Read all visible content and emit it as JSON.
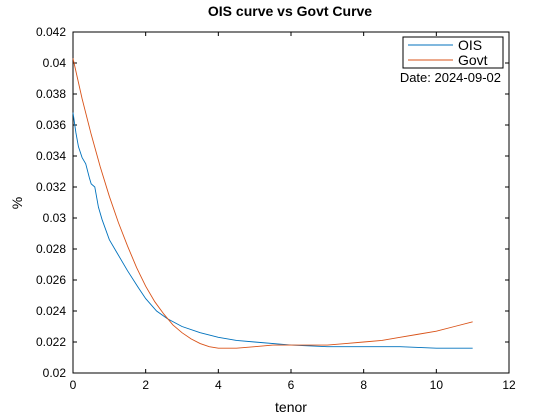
{
  "chart_data": {
    "type": "line",
    "title": "OIS curve vs Govt Curve",
    "xlabel": "tenor",
    "ylabel": "%",
    "xlim": [
      0,
      12
    ],
    "ylim": [
      0.02,
      0.042
    ],
    "x_ticks": [
      0,
      2,
      4,
      6,
      8,
      10,
      12
    ],
    "x_tick_labels": [
      "0",
      "2",
      "4",
      "6",
      "8",
      "10",
      "12"
    ],
    "y_ticks": [
      0.02,
      0.022,
      0.024,
      0.026,
      0.028,
      0.03,
      0.032,
      0.034,
      0.036,
      0.038,
      0.04,
      0.042
    ],
    "y_tick_labels": [
      "0.02",
      "0.022",
      "0.024",
      "0.026",
      "0.028",
      "0.03",
      "0.032",
      "0.034",
      "0.036",
      "0.038",
      "0.04",
      "0.042"
    ],
    "grid": false,
    "legend_position": "top-right",
    "annotation": "Date: 2024-09-02",
    "series": [
      {
        "name": "OIS",
        "color": "#0072BD",
        "x": [
          0,
          0.08,
          0.15,
          0.25,
          0.35,
          0.45,
          0.5,
          0.6,
          0.7,
          0.8,
          1.0,
          1.2,
          1.5,
          1.8,
          2.0,
          2.3,
          2.6,
          3.0,
          3.5,
          4.0,
          4.5,
          5.0,
          6.0,
          7.0,
          8.0,
          9.0,
          10.0,
          11.0
        ],
        "y": [
          0.0368,
          0.0355,
          0.0346,
          0.0339,
          0.0335,
          0.0326,
          0.0322,
          0.032,
          0.0307,
          0.0299,
          0.0286,
          0.0278,
          0.0266,
          0.0255,
          0.0248,
          0.024,
          0.0235,
          0.023,
          0.0226,
          0.0223,
          0.0221,
          0.022,
          0.0218,
          0.0217,
          0.0217,
          0.0217,
          0.0216,
          0.0216
        ]
      },
      {
        "name": "Govt",
        "color": "#D95319",
        "x": [
          0,
          0.25,
          0.5,
          0.75,
          1.0,
          1.25,
          1.5,
          1.75,
          2.0,
          2.25,
          2.5,
          2.75,
          3.0,
          3.25,
          3.5,
          3.75,
          4.0,
          4.5,
          5.0,
          5.5,
          6.0,
          6.5,
          7.0,
          7.5,
          8.0,
          8.5,
          9.0,
          9.5,
          10.0,
          10.5,
          11.0
        ],
        "y": [
          0.0403,
          0.0377,
          0.0354,
          0.0333,
          0.0314,
          0.0297,
          0.0282,
          0.0268,
          0.0256,
          0.0246,
          0.0238,
          0.0231,
          0.0226,
          0.0222,
          0.0219,
          0.0217,
          0.0216,
          0.0216,
          0.0217,
          0.0218,
          0.0218,
          0.0218,
          0.0218,
          0.0219,
          0.022,
          0.0221,
          0.0223,
          0.0225,
          0.0227,
          0.023,
          0.0233
        ]
      }
    ]
  }
}
